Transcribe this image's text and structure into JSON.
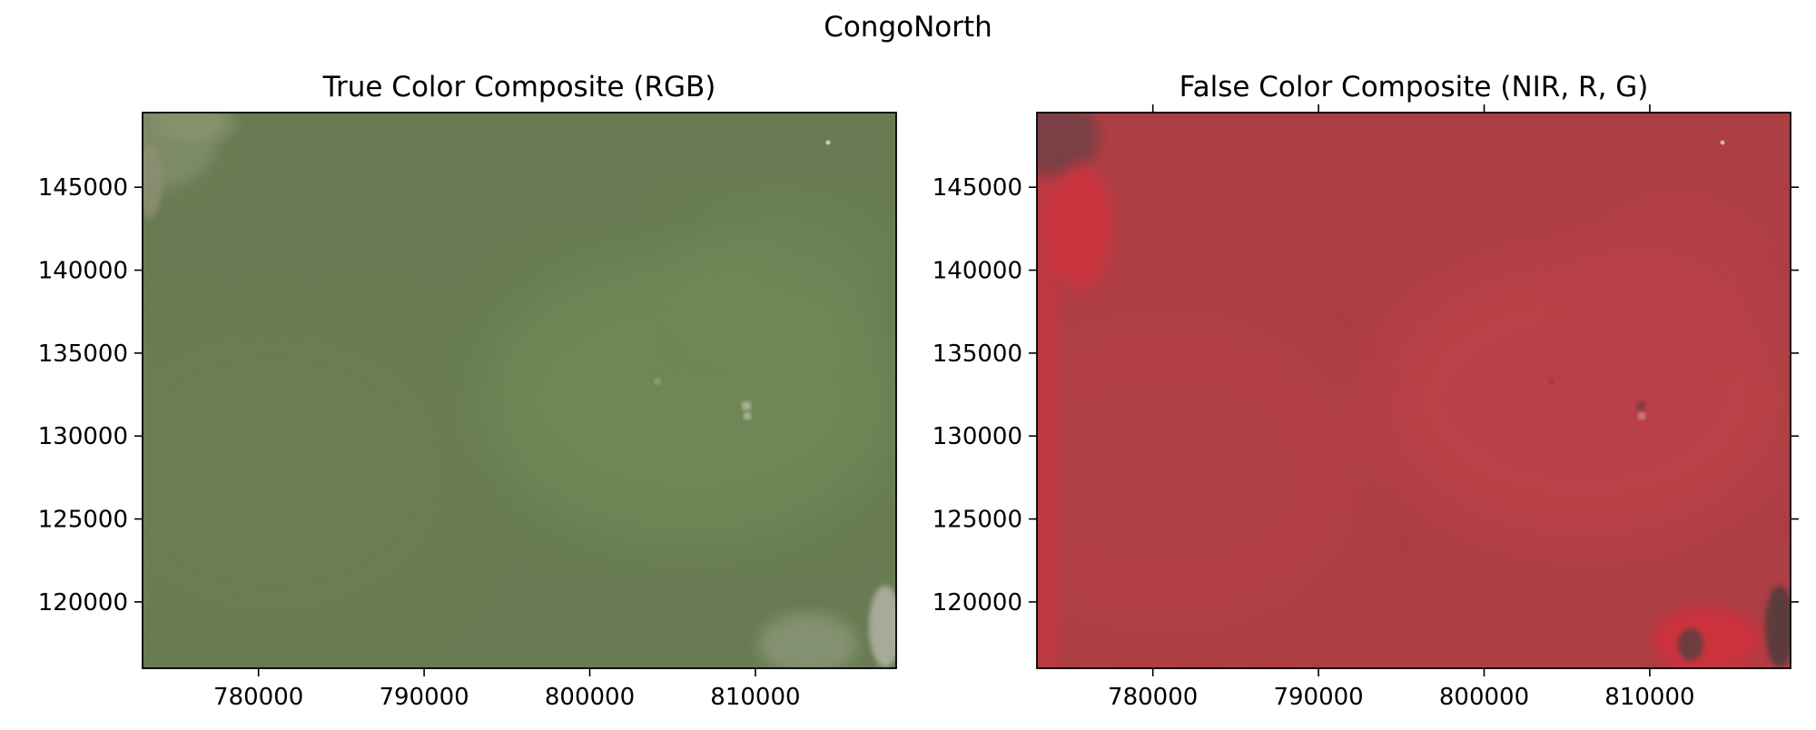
{
  "figure": {
    "suptitle": "CongoNorth"
  },
  "chart_data": [
    {
      "type": "heatmap",
      "title": "True Color Composite (RGB)",
      "xlabel": "",
      "ylabel": "",
      "xlim": [
        773000,
        818500
      ],
      "ylim": [
        116000,
        149500
      ],
      "xticks": [
        780000,
        790000,
        800000,
        810000
      ],
      "yticks": [
        145000,
        140000,
        135000,
        130000,
        125000,
        120000
      ],
      "colors": {
        "base": "#687b52",
        "patch": "#6f8a58",
        "edge": "#7d8a66"
      },
      "grid": false
    },
    {
      "type": "heatmap",
      "title": "False Color Composite (NIR, R, G)",
      "xlabel": "",
      "ylabel": "",
      "xlim": [
        773000,
        818500
      ],
      "ylim": [
        116000,
        149500
      ],
      "xticks": [
        780000,
        790000,
        800000,
        810000
      ],
      "yticks": [
        145000,
        140000,
        135000,
        130000,
        125000,
        120000
      ],
      "colors": {
        "base": "#ad3e44",
        "patch": "#bd4047",
        "edge": "#d8303c"
      },
      "grid": false
    }
  ]
}
